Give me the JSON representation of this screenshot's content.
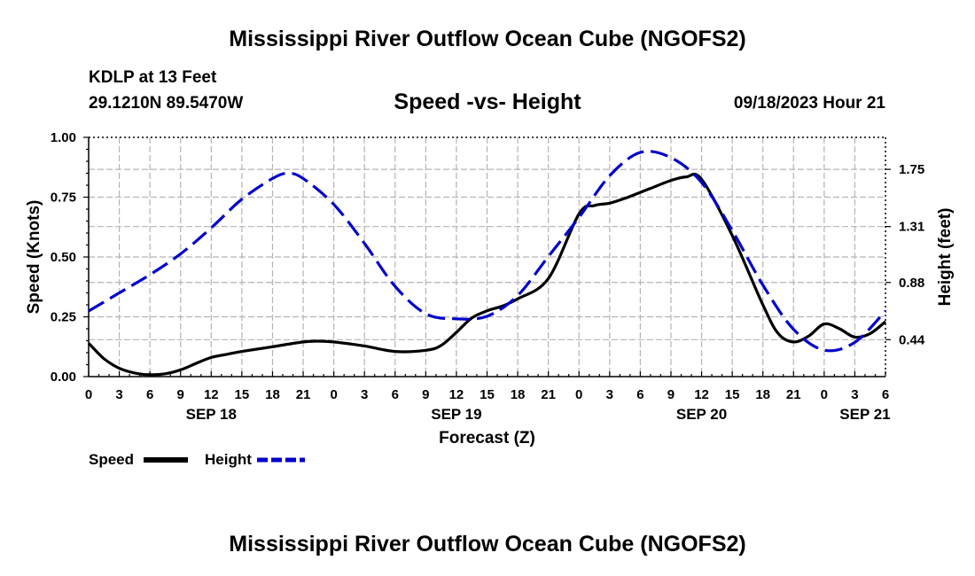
{
  "header": {
    "main_title": "Mississippi River Outflow Ocean Cube (NGOFS2)",
    "station": "KDLP at 13 Feet",
    "coordinates": "29.1210N  89.5470W",
    "subtitle": "Speed -vs- Height",
    "datetime": "09/18/2023 Hour 21"
  },
  "footer": {
    "title": "Mississippi River Outflow Ocean Cube (NGOFS2)"
  },
  "chart_data": {
    "type": "line",
    "title": "Speed -vs- Height",
    "xlabel": "Forecast (Z)",
    "ylabel": "Speed (Knots)",
    "ylabel_right": "Height (feet)",
    "x_unit": "hours since 09/18/2023 00Z",
    "xlim": [
      0,
      78
    ],
    "ylim": [
      0,
      1.0
    ],
    "ylim_right": [
      0.156,
      1.996
    ],
    "x_ticks": [
      0,
      3,
      6,
      9,
      12,
      15,
      18,
      21,
      24,
      27,
      30,
      33,
      36,
      39,
      42,
      45,
      48,
      51,
      54,
      57,
      60,
      63,
      66,
      69,
      72,
      75,
      78
    ],
    "x_tick_labels": [
      "0",
      "3",
      "6",
      "9",
      "12",
      "15",
      "18",
      "21",
      "0",
      "3",
      "6",
      "9",
      "12",
      "15",
      "18",
      "21",
      "0",
      "3",
      "6",
      "9",
      "12",
      "15",
      "18",
      "21",
      "0",
      "3",
      "6"
    ],
    "date_labels": [
      {
        "x": 12,
        "label": "SEP 18"
      },
      {
        "x": 36,
        "label": "SEP 19"
      },
      {
        "x": 60,
        "label": "SEP 20"
      },
      {
        "x": 76,
        "label": "SEP 21"
      }
    ],
    "y_ticks": [
      0.0,
      0.25,
      0.5,
      0.75,
      1.0
    ],
    "y_tick_labels": [
      "0.00",
      "0.25",
      "0.50",
      "0.75",
      "1.00"
    ],
    "y_ticks_right": [
      0.44,
      0.88,
      1.31,
      1.75
    ],
    "y_tick_labels_right": [
      "0.44",
      "0.88",
      "1.31",
      "1.75"
    ],
    "grid": true,
    "series": [
      {
        "name": "Speed",
        "axis": "left",
        "color": "#000000",
        "style": "solid",
        "x": [
          0,
          1.5,
          3,
          4.5,
          6,
          7.5,
          9,
          10.5,
          12,
          13.5,
          15,
          18,
          21,
          22.5,
          24,
          27,
          30,
          33,
          34.5,
          36,
          37.5,
          39,
          40.5,
          42,
          45,
          48,
          49.5,
          51,
          52.5,
          54,
          55.5,
          57,
          58.5,
          60,
          63,
          66,
          67.5,
          69,
          70.5,
          72,
          73.5,
          75,
          76.5,
          78
        ],
        "values": [
          0.14,
          0.075,
          0.035,
          0.015,
          0.008,
          0.012,
          0.028,
          0.055,
          0.08,
          0.093,
          0.105,
          0.125,
          0.145,
          0.148,
          0.145,
          0.128,
          0.105,
          0.11,
          0.13,
          0.185,
          0.245,
          0.275,
          0.295,
          0.325,
          0.41,
          0.68,
          0.715,
          0.725,
          0.745,
          0.77,
          0.795,
          0.82,
          0.835,
          0.825,
          0.59,
          0.3,
          0.18,
          0.145,
          0.17,
          0.22,
          0.2,
          0.165,
          0.18,
          0.23
        ]
      },
      {
        "name": "Height",
        "axis": "right",
        "color": "#0000cc",
        "style": "dashed",
        "x": [
          0,
          3,
          6,
          9,
          12,
          15,
          18,
          19.5,
          21,
          24,
          27,
          30,
          33,
          36,
          39,
          42,
          45,
          48,
          51,
          54,
          57,
          60,
          63,
          66,
          69,
          72,
          75,
          78
        ],
        "values": [
          0.66,
          0.8,
          0.94,
          1.1,
          1.3,
          1.52,
          1.68,
          1.72,
          1.68,
          1.48,
          1.18,
          0.85,
          0.64,
          0.6,
          0.62,
          0.78,
          1.08,
          1.38,
          1.7,
          1.88,
          1.84,
          1.65,
          1.28,
          0.86,
          0.52,
          0.36,
          0.42,
          0.66
        ]
      }
    ],
    "legend": [
      {
        "label": "Speed",
        "color": "#000000",
        "style": "solid"
      },
      {
        "label": "Height",
        "color": "#0000cc",
        "style": "dashed"
      }
    ],
    "legend_position": "bottom-left"
  }
}
